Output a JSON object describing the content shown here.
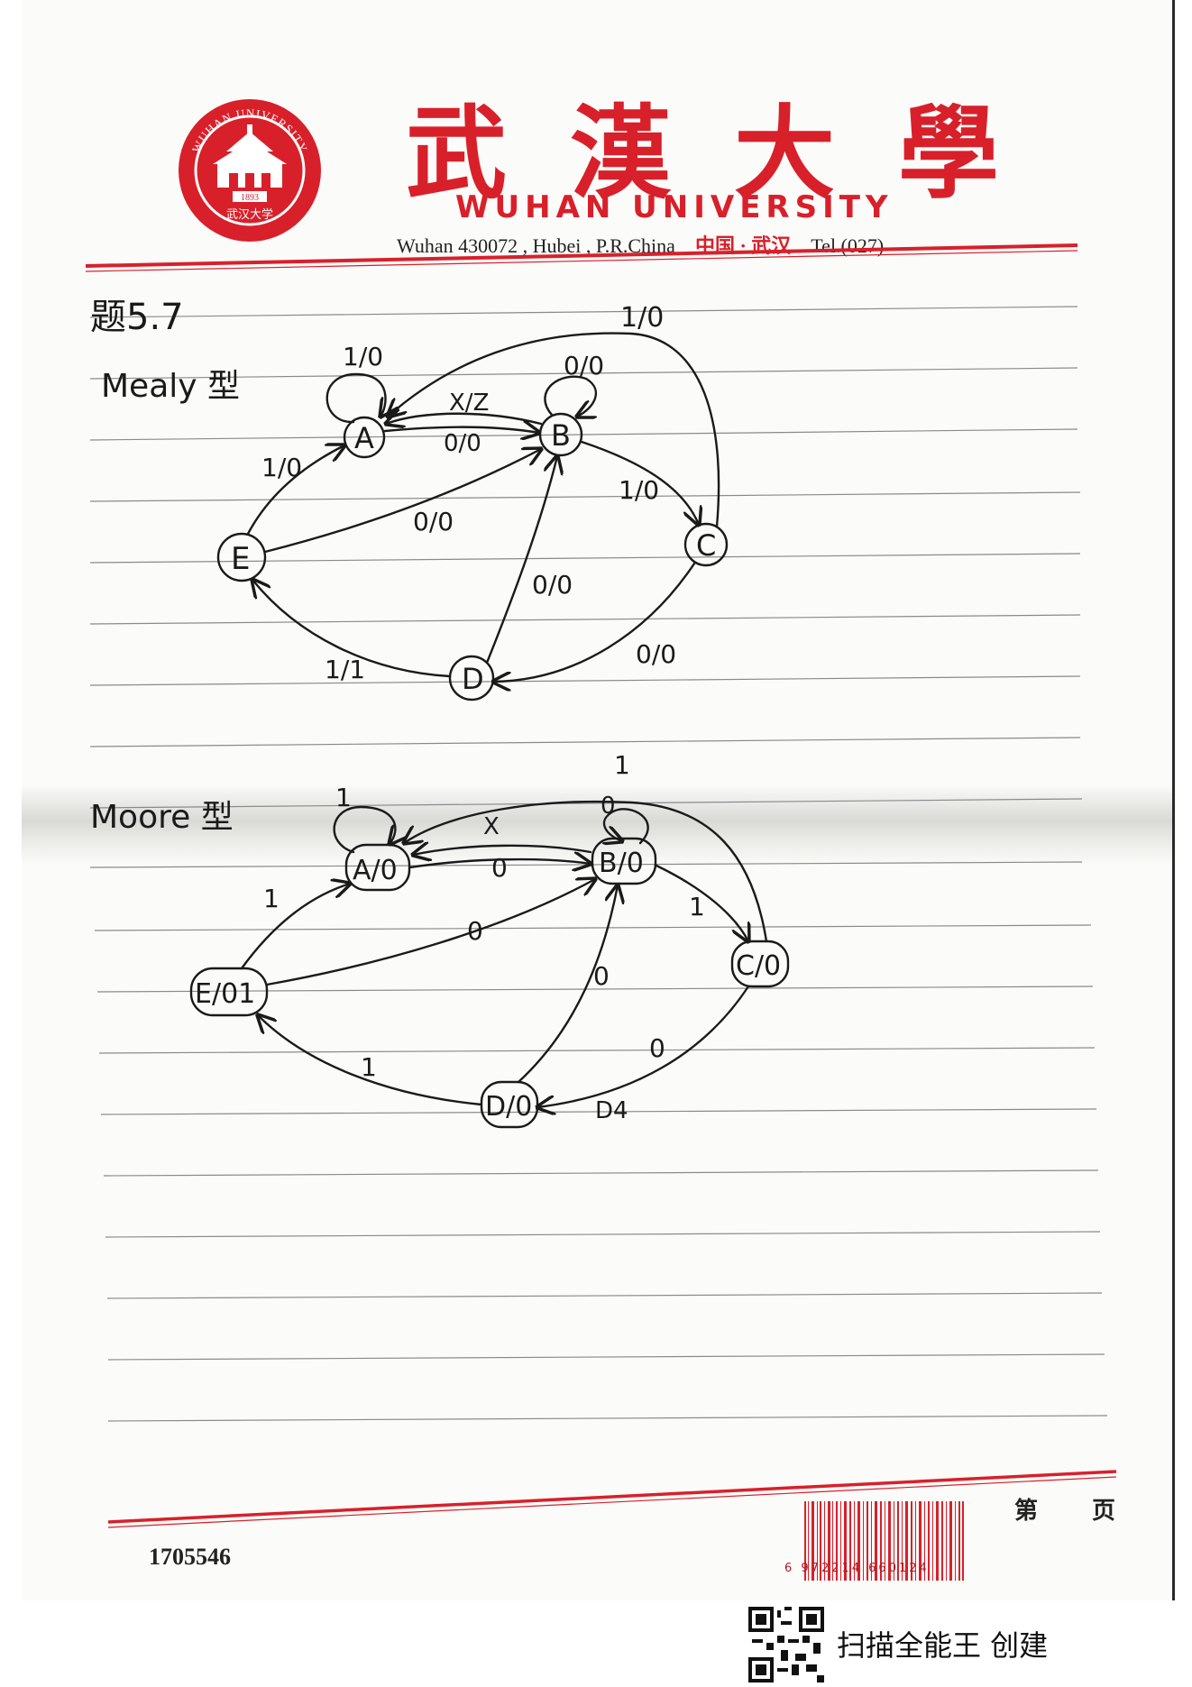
{
  "header": {
    "university_cn": "武漢大學",
    "university_en": "WUHAN UNIVERSITY",
    "address": "Wuhan 430072 , Hubei , P.R.China",
    "location_cn": "中国 · 武汉",
    "tel": "Tel.(027)",
    "seal_top_text": "WUHAN UNIVERSITY",
    "seal_year": "1893",
    "seal_bottom_text": "武汉大学"
  },
  "problem": {
    "title": "题5.7"
  },
  "mealy": {
    "title": "Mealy 型",
    "states": [
      "A",
      "B",
      "C",
      "D",
      "E"
    ],
    "transitions": [
      {
        "from": "A",
        "to": "A",
        "label": "1/0"
      },
      {
        "from": "B",
        "to": "B",
        "label": "0/0"
      },
      {
        "from": "B",
        "to": "A",
        "label": "X/Z"
      },
      {
        "from": "A",
        "to": "B",
        "label": "0/0"
      },
      {
        "from": "C",
        "to": "A",
        "label": "1/0"
      },
      {
        "from": "B",
        "to": "C",
        "label": "1/0"
      },
      {
        "from": "E",
        "to": "A",
        "label": "1/0"
      },
      {
        "from": "E",
        "to": "B",
        "label": "0/0"
      },
      {
        "from": "D",
        "to": "B",
        "label": "0/0"
      },
      {
        "from": "C",
        "to": "D",
        "label": "0/0"
      },
      {
        "from": "D",
        "to": "E",
        "label": "1/1"
      }
    ]
  },
  "moore": {
    "title": "Moore 型",
    "states": [
      "A/0",
      "B/0",
      "C/0",
      "D/0",
      "E/01"
    ],
    "transitions": [
      {
        "from": "A",
        "to": "A",
        "label": "1"
      },
      {
        "from": "B",
        "to": "B",
        "label": "0"
      },
      {
        "from": "C",
        "to": "A",
        "label": "1"
      },
      {
        "from": "B",
        "to": "A",
        "label": "X"
      },
      {
        "from": "A",
        "to": "B",
        "label": "0"
      },
      {
        "from": "E",
        "to": "A",
        "label": "1"
      },
      {
        "from": "B",
        "to": "C",
        "label": "1"
      },
      {
        "from": "E",
        "to": "B",
        "label": "0"
      },
      {
        "from": "D",
        "to": "B",
        "label": "0"
      },
      {
        "from": "C",
        "to": "D",
        "label": "0"
      },
      {
        "from": "D",
        "to": "E",
        "label": "1"
      }
    ],
    "scribble": "D4"
  },
  "footer": {
    "serial": "1705546",
    "page_label_1": "第",
    "page_label_2": "页",
    "barcode_digits": "6 972214 660124"
  },
  "watermark": {
    "text": "扫描全能王  创建"
  },
  "colors": {
    "accent_red": "#d8202a",
    "ink": "#1a1a1a"
  }
}
